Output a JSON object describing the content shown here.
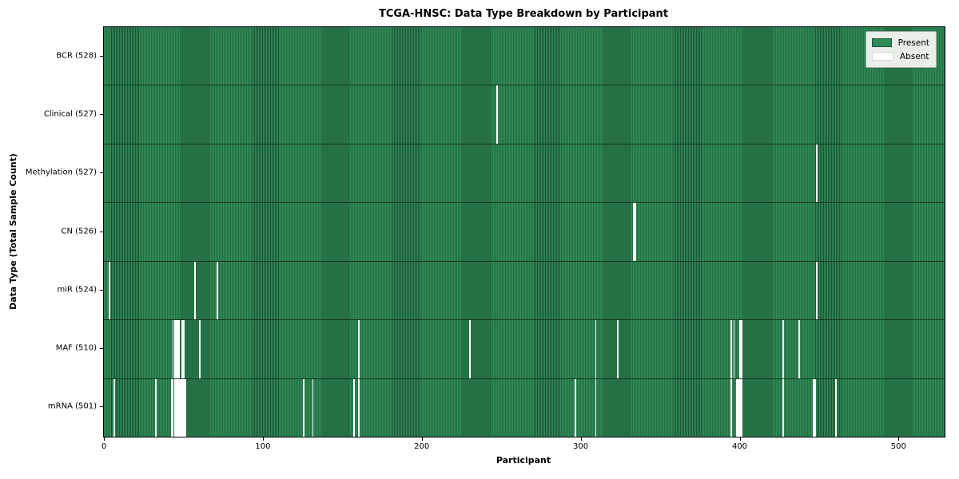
{
  "chart_data": {
    "type": "heatmap",
    "title": "TCGA-HNSC: Data Type Breakdown by Participant",
    "xlabel": "Participant",
    "ylabel": "Data Type (Total Sample Count)",
    "x_ticks": [
      0,
      100,
      200,
      300,
      400,
      500
    ],
    "x_range": [
      0,
      529
    ],
    "n_participants": 528,
    "grid": false,
    "legend": {
      "position": "upper right",
      "entries": [
        {
          "label": "Present",
          "color": "#2e8b57"
        },
        {
          "label": "Absent",
          "color": "#ffffff"
        }
      ]
    },
    "colors": {
      "present": "#2e8b57",
      "bar_edge": "#1e5435",
      "absent": "#ffffff"
    },
    "rows": [
      {
        "data_type": "BCR",
        "label": "BCR (528)",
        "total": 528,
        "absent_participants": []
      },
      {
        "data_type": "Clinical",
        "label": "Clinical (527)",
        "total": 527,
        "absent_participants": [
          247
        ]
      },
      {
        "data_type": "Methylation",
        "label": "Methylation (527)",
        "total": 527,
        "absent_participants": [
          448
        ]
      },
      {
        "data_type": "CN",
        "label": "CN (526)",
        "total": 526,
        "absent_participants": [
          333,
          334
        ]
      },
      {
        "data_type": "miR",
        "label": "miR (524)",
        "total": 524,
        "absent_participants": [
          3,
          57,
          71,
          448
        ]
      },
      {
        "data_type": "MAF",
        "label": "MAF (510)",
        "total": 510,
        "absent_participants": [
          43,
          44,
          45,
          46,
          47,
          49,
          50,
          60,
          160,
          230,
          309,
          323,
          394,
          396,
          400,
          401,
          427,
          437
        ]
      },
      {
        "data_type": "mRNA",
        "label": "mRNA (501)",
        "total": 501,
        "absent_participants": [
          6,
          32,
          42,
          43,
          44,
          45,
          46,
          47,
          48,
          49,
          50,
          51,
          125,
          131,
          157,
          160,
          296,
          309,
          394,
          398,
          399,
          400,
          401,
          427,
          446,
          447,
          460
        ]
      }
    ]
  }
}
